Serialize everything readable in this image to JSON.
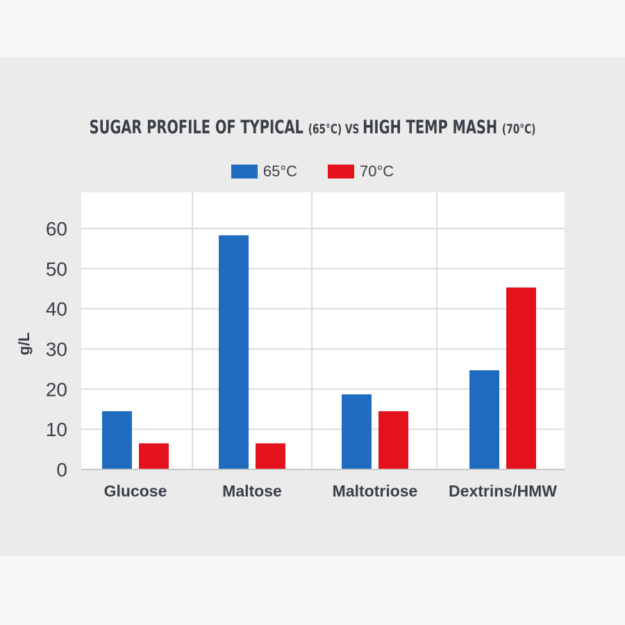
{
  "chart_data": {
    "type": "bar",
    "title_parts": [
      "SUGAR PROFILE OF TYPICAL ",
      "(65°C)",
      " VS ",
      "HIGH TEMP MASH ",
      "(70°C)"
    ],
    "ylabel": "g/L",
    "xlabel": "",
    "ylim": [
      0,
      60
    ],
    "yticks": [
      0,
      10,
      20,
      30,
      40,
      50,
      60
    ],
    "categories": [
      "Glucose",
      "Maltose",
      "Maltotriose",
      "Dextrins/HMW"
    ],
    "series": [
      {
        "name": "65°C",
        "color": "#1f6bbf",
        "values": [
          14.5,
          58.3,
          18.7,
          24.7
        ]
      },
      {
        "name": "70°C",
        "color": "#e3121b",
        "values": [
          6.5,
          6.5,
          14.5,
          45.3
        ]
      }
    ],
    "grid": true,
    "legend_position": "top-center"
  }
}
